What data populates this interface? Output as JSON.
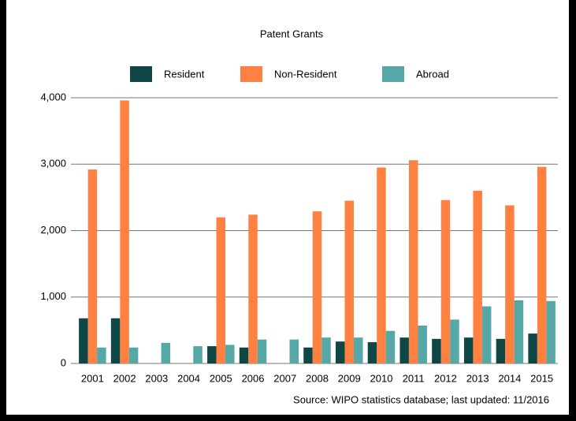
{
  "chart_data": {
    "type": "bar",
    "title": "Patent Grants",
    "categories": [
      "2001",
      "2002",
      "2003",
      "2004",
      "2005",
      "2006",
      "2007",
      "2008",
      "2009",
      "2010",
      "2011",
      "2012",
      "2013",
      "2014",
      "2015"
    ],
    "series": [
      {
        "name": "Resident",
        "color": "#0e4746",
        "values": [
          680,
          680,
          0,
          0,
          260,
          240,
          0,
          240,
          330,
          320,
          390,
          370,
          390,
          370,
          450
        ]
      },
      {
        "name": "Non-Resident",
        "color": "#ff8142",
        "values": [
          2920,
          3960,
          0,
          0,
          2200,
          2240,
          0,
          2290,
          2450,
          2950,
          3060,
          2460,
          2600,
          2380,
          2960
        ]
      },
      {
        "name": "Abroad",
        "color": "#55a8a5",
        "values": [
          240,
          240,
          310,
          260,
          280,
          360,
          360,
          390,
          390,
          490,
          570,
          660,
          860,
          950,
          940
        ]
      }
    ],
    "ylim": [
      0,
      4000
    ],
    "yticks": [
      0,
      {
        "value": 1000,
        "label": "1,000"
      },
      {
        "value": 2000,
        "label": "2,000"
      },
      {
        "value": 3000,
        "label": "3,000"
      },
      {
        "value": 4000,
        "label": "4,000"
      }
    ],
    "grid": true,
    "legend": "top",
    "source": "Source: WIPO statistics database; last updated: 11/2016"
  }
}
